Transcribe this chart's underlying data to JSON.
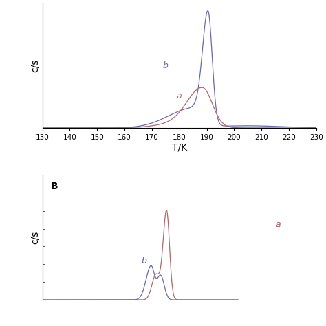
{
  "top_panel": {
    "xlabel": "T/K",
    "ylabel": "c/s",
    "xlim": [
      130,
      230
    ],
    "x_ticks": [
      130,
      140,
      150,
      160,
      170,
      180,
      190,
      200,
      210,
      220,
      230
    ],
    "curve_a_color": "#b06868",
    "curve_b_color": "#6868b0",
    "curve_a_label": "a",
    "curve_b_label": "b"
  },
  "bottom_panel": {
    "label": "B",
    "ylabel": "c/s",
    "curve_a_color": "#b06868",
    "curve_b_color": "#6868b0",
    "curve_a_label": "a",
    "curve_b_label": "b"
  }
}
